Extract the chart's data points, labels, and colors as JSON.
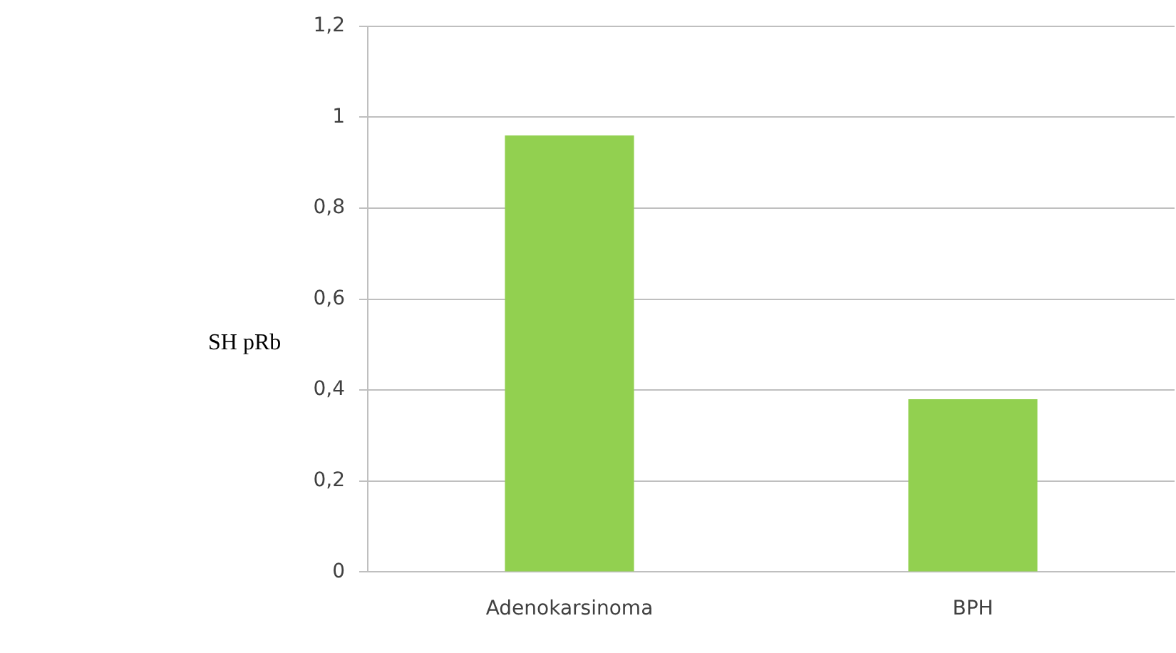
{
  "chart_data": {
    "type": "bar",
    "ylabel": "SH pRb",
    "categories": [
      "Adenokarsinoma",
      "BPH"
    ],
    "values": [
      0.96,
      0.38
    ],
    "color": "#92d050",
    "ylim": [
      0,
      1.2
    ],
    "yticks": [
      {
        "value": 0,
        "label": "0"
      },
      {
        "value": 0.2,
        "label": "0,2"
      },
      {
        "value": 0.4,
        "label": "0,4"
      },
      {
        "value": 0.6,
        "label": "0,6"
      },
      {
        "value": 0.8,
        "label": "0,8"
      },
      {
        "value": 1,
        "label": "1"
      },
      {
        "value": 1.2,
        "label": "1,2"
      }
    ],
    "grid": "y",
    "legend": false
  }
}
